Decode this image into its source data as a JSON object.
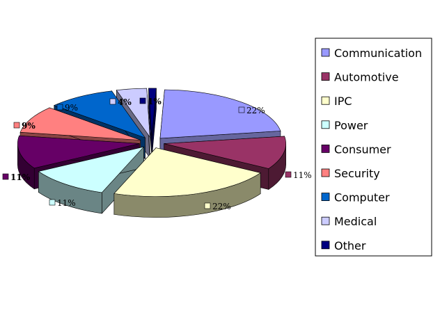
{
  "chart_data": {
    "type": "pie",
    "title": "",
    "slices": [
      {
        "label": "Communication",
        "value": 22,
        "display": "22%",
        "color": "#9999ff",
        "side": "#66669e"
      },
      {
        "label": "Automotive",
        "value": 11,
        "display": "11%",
        "color": "#993366",
        "side": "#4d1a33"
      },
      {
        "label": "IPC",
        "value": 22,
        "display": "22%",
        "color": "#ffffcc",
        "side": "#8a8a6a"
      },
      {
        "label": "Power",
        "value": 11,
        "display": "11%",
        "color": "#ccffff",
        "side": "#6a8585"
      },
      {
        "label": "Consumer",
        "value": 11,
        "display": "11%",
        "color": "#660066",
        "side": "#330033"
      },
      {
        "label": "Security",
        "value": 9,
        "display": "9%",
        "color": "#ff8080",
        "side": "#8a4444"
      },
      {
        "label": "Computer",
        "value": 9,
        "display": "9%",
        "color": "#0066cc",
        "side": "#003366"
      },
      {
        "label": "Medical",
        "value": 4,
        "display": "4%",
        "color": "#ccccff",
        "side": "#6a6a85"
      },
      {
        "label": "Other",
        "value": 1,
        "display": "1%",
        "color": "#000080",
        "side": "#000040"
      }
    ],
    "legend_position": "right"
  }
}
